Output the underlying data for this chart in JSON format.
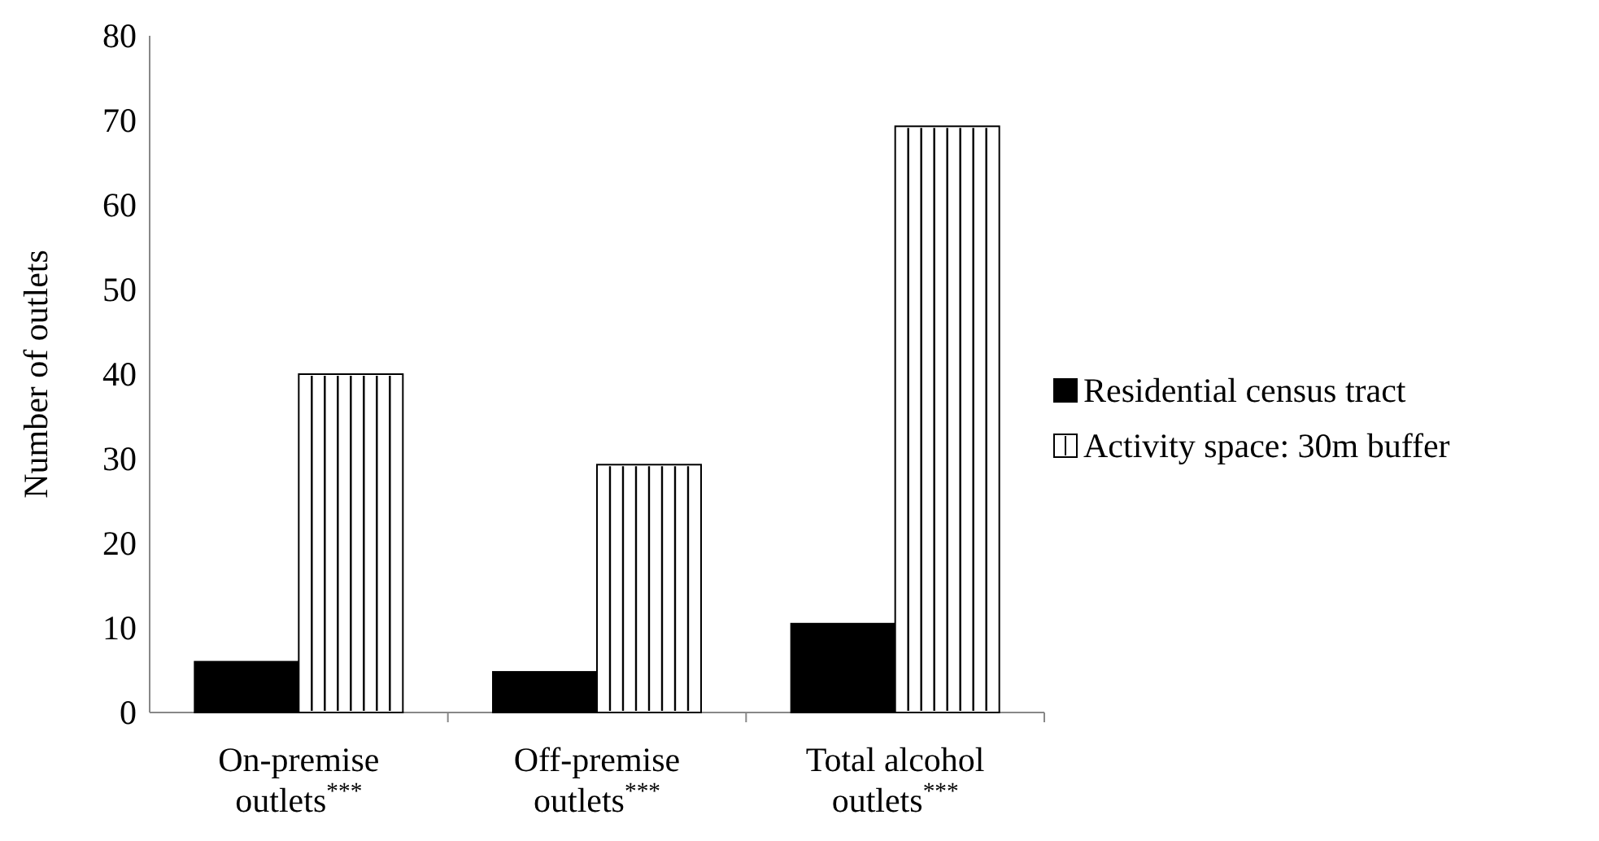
{
  "chart_data": {
    "type": "bar",
    "ylabel": "Number of outlets",
    "categories": [
      "On-premise outlets$^{***}$",
      "Off-premise outlets$^{***}$",
      "Total alcohol outlets$^{***}$"
    ],
    "series": [
      {
        "name": "Residential census tract",
        "color": "#000000",
        "values": [
          6,
          4.8,
          10.5
        ]
      },
      {
        "name": "Activity space: 30m buffer",
        "color": "#ffffff",
        "values": [
          40,
          29.3,
          69.3
        ]
      }
    ],
    "ylim": [
      0,
      80
    ],
    "yticks": [
      0,
      10,
      20,
      30,
      40,
      50,
      60,
      70,
      80
    ],
    "grid": false,
    "legend": "right"
  }
}
